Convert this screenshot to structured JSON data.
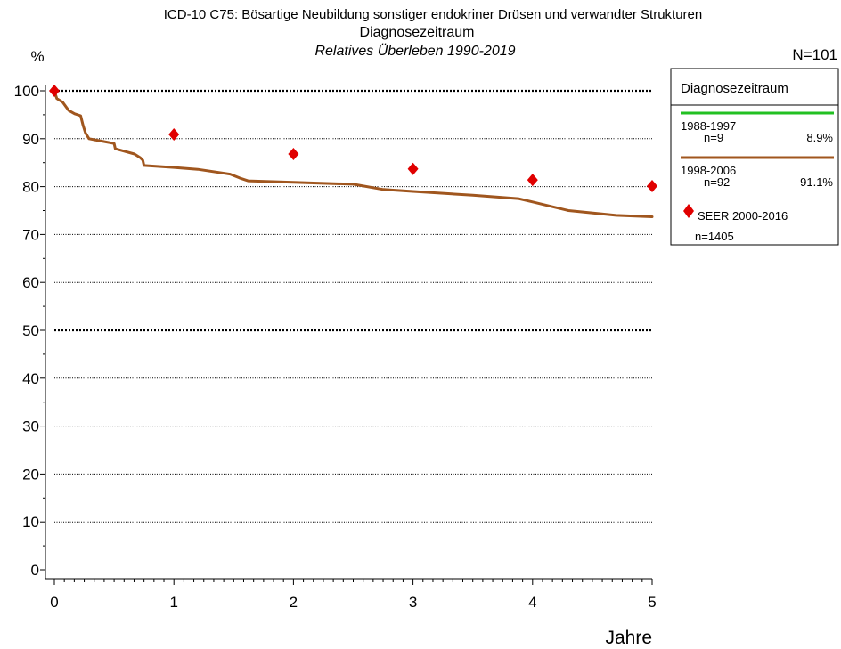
{
  "chart_data": {
    "type": "line",
    "title": "ICD-10 C75: Bösartige Neubildung sonstiger endokriner Drüsen und verwandter Strukturen",
    "subtitle": "Diagnosezeitraum",
    "subtitle2": "Relatives Überleben 1990-2019",
    "n_total": "N=101",
    "ylabel": "%",
    "xlabel": "Jahre",
    "xlim": [
      0,
      5
    ],
    "ylim": [
      0,
      100
    ],
    "x_ticks": [
      0,
      1,
      2,
      3,
      4,
      5
    ],
    "y_ticks": [
      0,
      10,
      20,
      30,
      40,
      50,
      60,
      70,
      80,
      90,
      100
    ],
    "grid": "horizontal dotted; 50 and 100 bold",
    "legend": {
      "position": "right",
      "title": "Diagnosezeitraum",
      "entries": [
        {
          "label": "1988-1997",
          "n": "n=9",
          "pct": "8.9%",
          "color": "#22c022"
        },
        {
          "label": "1998-2006",
          "n": "n=92",
          "pct": "91.1%",
          "color": "#a0561e"
        }
      ],
      "reference": {
        "label": "SEER 2000-2016",
        "n": "n=1405",
        "color": "#e00000"
      }
    },
    "series": [
      {
        "name": "1998-2006",
        "color": "#a0561e",
        "x": [
          0,
          0.02,
          0.07,
          0.12,
          0.17,
          0.22,
          0.24,
          0.26,
          0.29,
          0.35,
          0.5,
          0.51,
          0.57,
          0.67,
          0.72,
          0.74,
          0.75,
          1.0,
          1.2,
          1.47,
          1.55,
          1.62,
          2.0,
          2.5,
          2.75,
          3.0,
          3.5,
          3.88,
          4.0,
          4.3,
          4.7,
          5.0
        ],
        "y": [
          100,
          98.4,
          97.6,
          95.9,
          95.2,
          94.8,
          92.8,
          91.2,
          90.0,
          89.7,
          89.0,
          87.9,
          87.5,
          86.8,
          86.0,
          85.5,
          84.4,
          84.0,
          83.6,
          82.6,
          81.8,
          81.2,
          80.9,
          80.5,
          79.4,
          79.0,
          78.2,
          77.5,
          76.8,
          75.0,
          74.0,
          73.7
        ]
      }
    ],
    "reference_points": {
      "name": "SEER 2000-2016",
      "color": "#e00000",
      "x": [
        0,
        1,
        2,
        3,
        4,
        5
      ],
      "y": [
        100,
        90.9,
        86.8,
        83.7,
        81.4,
        80.1
      ]
    }
  }
}
